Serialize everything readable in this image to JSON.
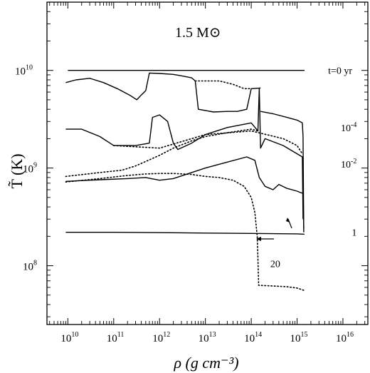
{
  "chart_data": {
    "type": "line",
    "title": "1.5 M⊙",
    "xlabel": "ρ  (g cm⁻³)",
    "ylabel": "T̃  (K)",
    "x_scale": "log",
    "y_scale": "log",
    "xlim": [
      3500000000.0,
      3.5e+16
    ],
    "ylim": [
      25000000.0,
      50000000000.0
    ],
    "x_ticks": [
      10000000000.0,
      100000000000.0,
      1000000000000.0,
      10000000000000.0,
      100000000000000.0,
      1000000000000000.0,
      1e+16
    ],
    "x_tick_labels": [
      {
        "base": "10",
        "exp": "10"
      },
      {
        "base": "10",
        "exp": "11"
      },
      {
        "base": "10",
        "exp": "12"
      },
      {
        "base": "10",
        "exp": "13"
      },
      {
        "base": "10",
        "exp": "14"
      },
      {
        "base": "10",
        "exp": "15"
      },
      {
        "base": "10",
        "exp": "16"
      }
    ],
    "y_ticks": [
      100000000.0,
      1000000000.0,
      10000000000.0
    ],
    "y_tick_labels": [
      {
        "base": "10",
        "exp": "8"
      },
      {
        "base": "10",
        "exp": "9"
      },
      {
        "base": "10",
        "exp": "10"
      }
    ],
    "grid": false,
    "series": [
      {
        "label": "t=0 yr",
        "style": "solid",
        "points": [
          [
            10000000000.0,
            10000000000.0
          ],
          [
            100000000000.0,
            10000000000.0
          ],
          [
            1000000000000.0,
            10000000000.0
          ],
          [
            10000000000000.0,
            10000000000.0
          ],
          [
            100000000000000.0,
            10000000000.0
          ],
          [
            1000000000000000.0,
            10000000000.0
          ],
          [
            1450000000000000.0,
            10000000000.0
          ]
        ]
      },
      {
        "label": "",
        "style": "solid",
        "points": [
          [
            9000000000.0,
            7500000000.0
          ],
          [
            15000000000.0,
            8000000000.0
          ],
          [
            30000000000.0,
            8300000000.0
          ],
          [
            60000000000.0,
            7500000000.0
          ],
          [
            120000000000.0,
            6500000000.0
          ],
          [
            220000000000.0,
            5600000000.0
          ],
          [
            320000000000.0,
            5000000000.0
          ],
          [
            400000000000.0,
            5600000000.0
          ],
          [
            500000000000.0,
            6200000000.0
          ],
          [
            600000000000.0,
            9400000000.0
          ],
          [
            1000000000000.0,
            9300000000.0
          ],
          [
            2000000000000.0,
            9100000000.0
          ],
          [
            3000000000000.0,
            8800000000.0
          ],
          [
            5000000000000.0,
            8400000000.0
          ],
          [
            6000000000000.0,
            7800000000.0
          ],
          [
            7000000000000.0,
            4000000000.0
          ],
          [
            15000000000000.0,
            3750000000.0
          ],
          [
            30000000000000.0,
            3800000000.0
          ],
          [
            50000000000000.0,
            3800000000.0
          ],
          [
            80000000000000.0,
            4000000000.0
          ],
          [
            100000000000000.0,
            6500000000.0
          ],
          [
            160000000000000.0,
            6600000000.0
          ]
        ]
      },
      {
        "label": "",
        "style": "dotted",
        "points": [
          [
            6000000000000.0,
            7800000000.0
          ],
          [
            10000000000000.0,
            7800000000.0
          ],
          [
            20000000000000.0,
            7800000000.0
          ],
          [
            40000000000000.0,
            7200000000.0
          ],
          [
            70000000000000.0,
            6500000000.0
          ],
          [
            100000000000000.0,
            6500000000.0
          ]
        ]
      },
      {
        "label": "10^-4",
        "style": "solid",
        "points": [
          [
            160000000000000.0,
            3800000000.0
          ],
          [
            300000000000000.0,
            3600000000.0
          ],
          [
            600000000000000.0,
            3300000000.0
          ],
          [
            1000000000000000.0,
            3100000000.0
          ],
          [
            1300000000000000.0,
            2900000000.0
          ],
          [
            1350000000000000.0,
            2100000000.0
          ],
          [
            1400000000000000.0,
            220000000.0
          ]
        ]
      },
      {
        "label": "",
        "style": "solid",
        "points": [
          [
            9000000000.0,
            2500000000.0
          ],
          [
            20000000000.0,
            2500000000.0
          ],
          [
            50000000000.0,
            2100000000.0
          ],
          [
            100000000000.0,
            1700000000.0
          ],
          [
            300000000000.0,
            1700000000.0
          ],
          [
            600000000000.0,
            1800000000.0
          ],
          [
            700000000000.0,
            3300000000.0
          ],
          [
            1000000000000.0,
            3500000000.0
          ],
          [
            1500000000000.0,
            3000000000.0
          ],
          [
            2000000000000.0,
            1800000000.0
          ],
          [
            2500000000000.0,
            1550000000.0
          ],
          [
            5000000000000.0,
            1800000000.0
          ],
          [
            10000000000000.0,
            2200000000.0
          ],
          [
            30000000000000.0,
            2600000000.0
          ],
          [
            100000000000000.0,
            2900000000.0
          ],
          [
            140000000000000.0,
            2400000000.0
          ],
          [
            150000000000000.0,
            6600000000.0
          ],
          [
            160000000000000.0,
            1600000000.0
          ],
          [
            200000000000000.0,
            2000000000.0
          ],
          [
            500000000000000.0,
            1700000000.0
          ],
          [
            1000000000000000.0,
            1400000000.0
          ],
          [
            1300000000000000.0,
            1300000000.0
          ],
          [
            1350000000000000.0,
            300000000.0
          ]
        ]
      },
      {
        "label": "",
        "style": "dotted",
        "points": [
          [
            100000000000.0,
            1700000000.0
          ],
          [
            1000000000000.0,
            1600000000.0
          ],
          [
            10000000000000.0,
            2200000000.0
          ],
          [
            100000000000000.0,
            2400000000.0
          ],
          [
            500000000000000.0,
            2000000000.0
          ],
          [
            1000000000000000.0,
            1700000000.0
          ],
          [
            1300000000000000.0,
            1400000000.0
          ]
        ]
      },
      {
        "label": "10^-2",
        "style": "dotted",
        "points": [
          [
            9000000000.0,
            820000000.0
          ],
          [
            50000000000.0,
            900000000.0
          ],
          [
            150000000000.0,
            950000000.0
          ],
          [
            300000000000.0,
            1050000000.0
          ],
          [
            1000000000000.0,
            1350000000.0
          ],
          [
            2000000000000.0,
            1600000000.0
          ],
          [
            5000000000000.0,
            1900000000.0
          ],
          [
            10000000000000.0,
            2100000000.0
          ],
          [
            30000000000000.0,
            2300000000.0
          ],
          [
            100000000000000.0,
            2500000000.0
          ],
          [
            140000000000000.0,
            2400000000.0
          ]
        ]
      },
      {
        "label": "",
        "style": "solid",
        "points": [
          [
            9000000000.0,
            730000000.0
          ],
          [
            50000000000.0,
            760000000.0
          ],
          [
            200000000000.0,
            780000000.0
          ],
          [
            500000000000.0,
            800000000.0
          ],
          [
            1000000000000.0,
            750000000.0
          ],
          [
            2000000000000.0,
            780000000.0
          ],
          [
            5000000000000.0,
            900000000.0
          ],
          [
            10000000000000.0,
            1000000000.0
          ],
          [
            30000000000000.0,
            1150000000.0
          ],
          [
            80000000000000.0,
            1300000000.0
          ],
          [
            120000000000000.0,
            1200000000.0
          ],
          [
            150000000000000.0,
            800000000.0
          ],
          [
            200000000000000.0,
            650000000.0
          ],
          [
            300000000000000.0,
            600000000.0
          ],
          [
            400000000000000.0,
            680000000.0
          ],
          [
            600000000000000.0,
            620000000.0
          ],
          [
            1000000000000000.0,
            580000000.0
          ],
          [
            1200000000000000.0,
            560000000.0
          ],
          [
            1350000000000000.0,
            550000000.0
          ],
          [
            1400000000000000.0,
            240000000.0
          ]
        ]
      },
      {
        "label": "1",
        "style": "dotted",
        "points": [
          [
            9000000000.0,
            720000000.0
          ],
          [
            50000000000.0,
            780000000.0
          ],
          [
            200000000000.0,
            840000000.0
          ],
          [
            500000000000.0,
            870000000.0
          ],
          [
            1000000000000.0,
            880000000.0
          ],
          [
            2000000000000.0,
            880000000.0
          ],
          [
            5000000000000.0,
            860000000.0
          ],
          [
            10000000000000.0,
            820000000.0
          ],
          [
            20000000000000.0,
            800000000.0
          ],
          [
            40000000000000.0,
            750000000.0
          ],
          [
            70000000000000.0,
            650000000.0
          ],
          [
            100000000000000.0,
            500000000.0
          ],
          [
            120000000000000.0,
            350000000.0
          ],
          [
            135000000000000.0,
            200000000.0
          ],
          [
            140000000000000.0,
            120000000.0
          ],
          [
            145000000000000.0,
            63000000.0
          ],
          [
            300000000000000.0,
            62000000.0
          ],
          [
            600000000000000.0,
            61000000.0
          ],
          [
            1000000000000000.0,
            59000000.0
          ],
          [
            1400000000000000.0,
            56000000.0
          ]
        ]
      },
      {
        "label": "20",
        "style": "solid",
        "points": [
          [
            9000000000.0,
            220000000.0
          ],
          [
            100000000000.0,
            220000000.0
          ],
          [
            1000000000000.0,
            218000000.0
          ],
          [
            10000000000000.0,
            216000000.0
          ],
          [
            100000000000000.0,
            214000000.0
          ],
          [
            1000000000000000.0,
            212000000.0
          ],
          [
            1450000000000000.0,
            210000000.0
          ]
        ]
      }
    ],
    "annotations": [
      {
        "text": "t=0 yr",
        "x": 1.6e+16,
        "y": 10000000000.0
      },
      {
        "text_base": "10",
        "text_exp": "-4",
        "x": 2e+16,
        "y": 2600000000.0
      },
      {
        "text_base": "10",
        "text_exp": "-2",
        "x": 2e+16,
        "y": 1100000000.0
      },
      {
        "text": "1",
        "x": 2e+16,
        "y": 220000000.0
      },
      {
        "text": "20",
        "x": 260000000000000.0,
        "y": 105000000.0
      }
    ]
  }
}
